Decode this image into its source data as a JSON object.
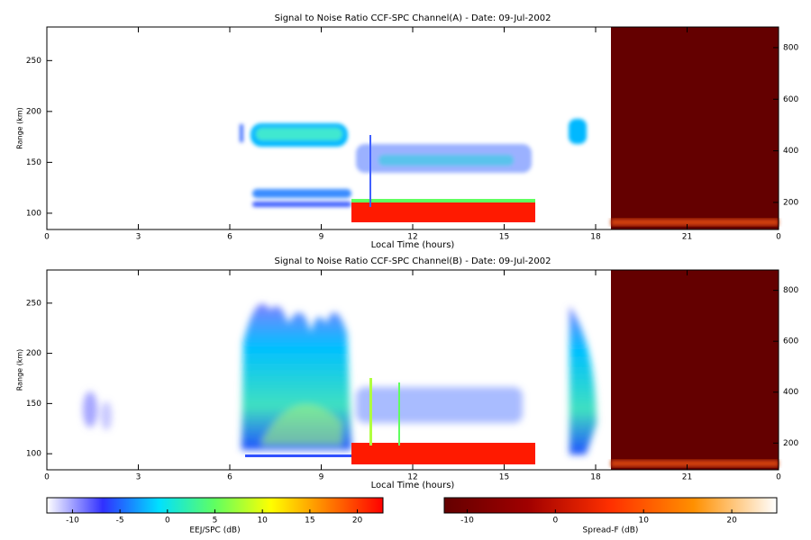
{
  "chart_data": [
    {
      "type": "heatmap",
      "title": "Signal to Noise Ratio CCF-SPC Channel(A) - Date: 09-Jul-2002",
      "x_label": "Local Time (hours)",
      "y_label": "Range (km)",
      "xlim": [
        0,
        24
      ],
      "xticks": [
        0,
        3,
        6,
        9,
        12,
        15,
        18,
        21,
        {
          "value": 24,
          "label": "0"
        }
      ],
      "ylim": [
        84,
        283
      ],
      "yticks": [
        100,
        150,
        200,
        250
      ],
      "y2lim": [
        95,
        880
      ],
      "y2ticks": [
        200,
        400,
        600,
        800
      ]
    },
    {
      "type": "heatmap",
      "title": "Signal to Noise Ratio CCF-SPC Channel(B) - Date: 09-Jul-2002",
      "x_label": "Local Time (hours)",
      "y_label": "Range (km)",
      "xlim": [
        0,
        24
      ],
      "xticks": [
        0,
        3,
        6,
        9,
        12,
        15,
        18,
        21,
        {
          "value": 24,
          "label": "0"
        }
      ],
      "ylim": [
        84,
        283
      ],
      "yticks": [
        100,
        150,
        200,
        250
      ],
      "y2lim": [
        95,
        880
      ],
      "y2ticks": [
        200,
        400,
        600,
        800
      ]
    },
    {
      "type": "colorbar",
      "label": "EEJ/SPC (dB)",
      "clim": [
        -12.7,
        22.7
      ],
      "ticks": [
        -10,
        -5,
        0,
        5,
        10,
        15,
        20
      ],
      "colors": [
        "#ffffff",
        "#3030ff",
        "#00e0ff",
        "#60ff60",
        "#ffff00",
        "#ff8000",
        "#ff0000"
      ]
    },
    {
      "type": "colorbar",
      "label": "Spread-F (dB)",
      "clim": [
        -12.6,
        25.1
      ],
      "ticks": [
        -10,
        0,
        10,
        20
      ],
      "colors": [
        "#640000",
        "#a00000",
        "#ff3000",
        "#ff9000",
        "#ffffff"
      ]
    }
  ]
}
